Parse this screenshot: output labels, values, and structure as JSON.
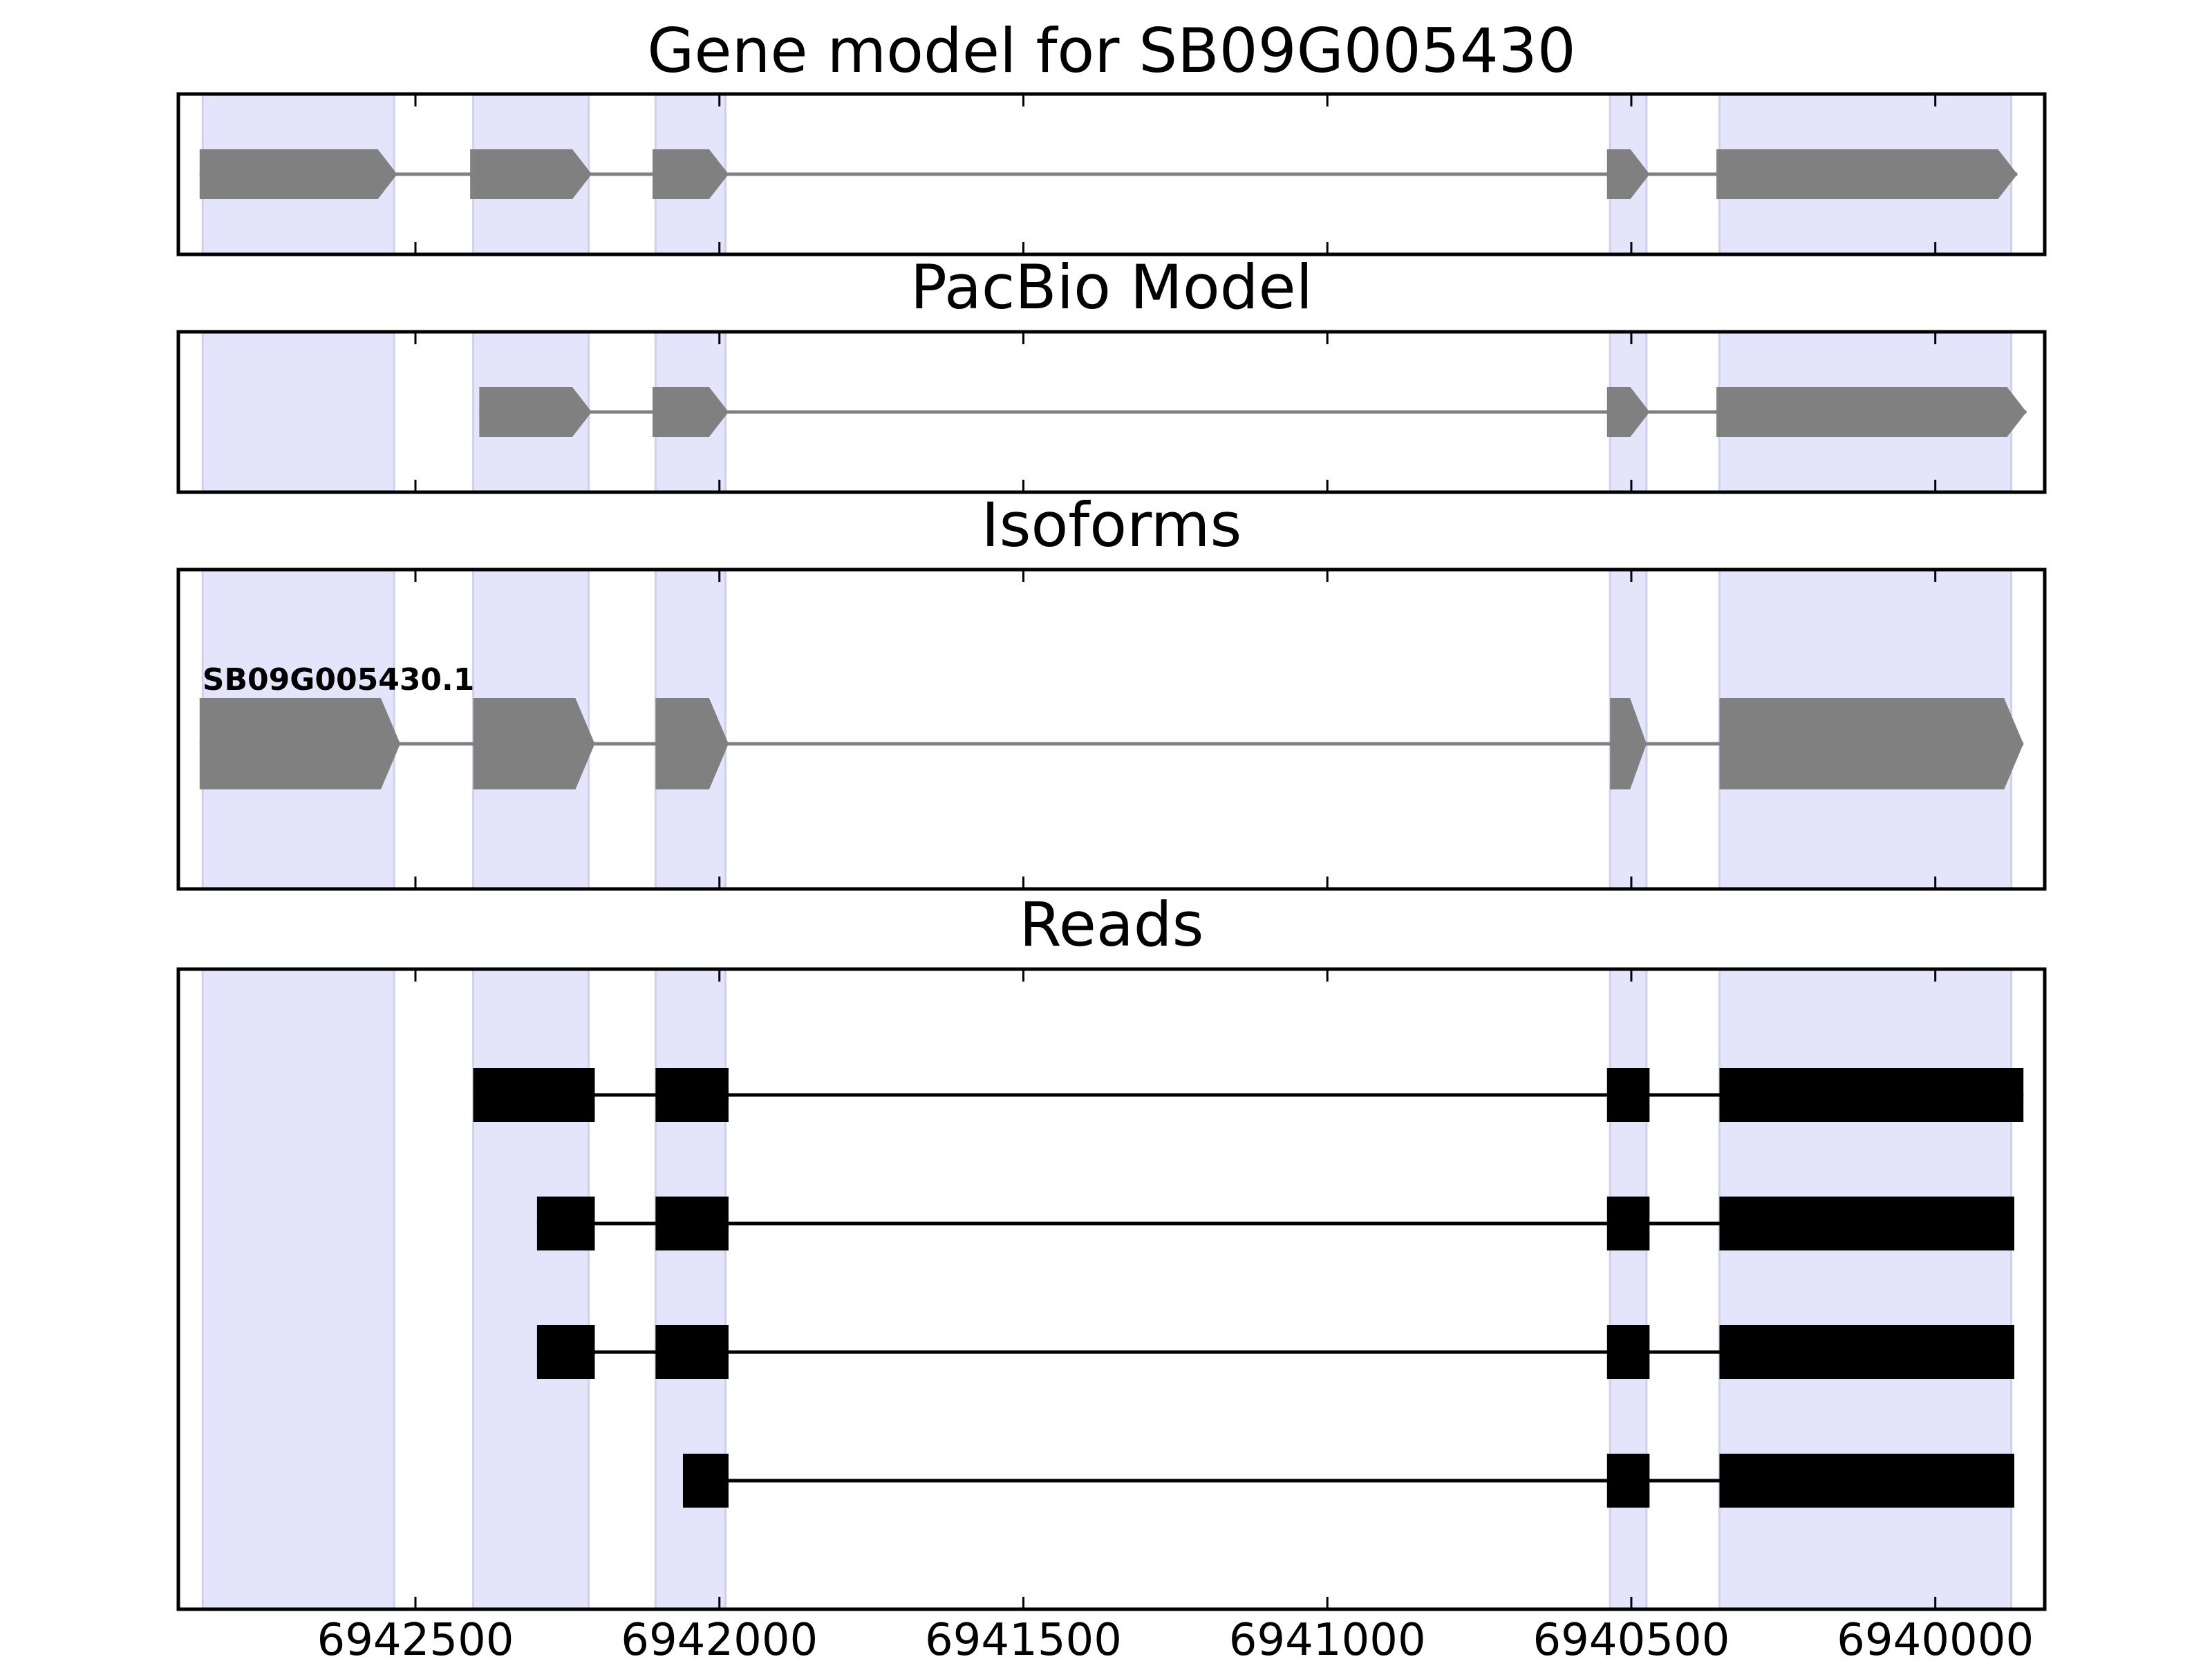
{
  "chart_data": {
    "type": "gene-track",
    "x_axis": {
      "reversed": true,
      "xlim": [
        6942890,
        6939820
      ],
      "ticks": [
        6942500,
        6942000,
        6941500,
        6941000,
        6940500,
        6940000
      ],
      "tick_labels": [
        "6942500",
        "6942000",
        "6941500",
        "6941000",
        "6940500",
        "6940000"
      ]
    },
    "highlight_color": "#e4e4fb",
    "highlight_regions": [
      [
        6942850,
        6942535
      ],
      [
        6942405,
        6942215
      ],
      [
        6942105,
        6941990
      ],
      [
        6940535,
        6940475
      ],
      [
        6940355,
        6939875
      ]
    ],
    "panels": [
      {
        "title": "Gene model for SB09G005430",
        "kind": "model",
        "color": "#808080",
        "intron_color": "#808080",
        "tracks": [
          {
            "label": "",
            "exons": [
              [
                6942855,
                6942530
              ],
              [
                6942410,
                6942210
              ],
              [
                6942110,
                6941985
              ],
              [
                6940540,
                6940470
              ],
              [
                6940360,
                6939865
              ]
            ]
          }
        ]
      },
      {
        "title": "PacBio Model",
        "kind": "model",
        "color": "#808080",
        "intron_color": "#808080",
        "tracks": [
          {
            "label": "",
            "exons": [
              [
                6942395,
                6942210
              ],
              [
                6942110,
                6941985
              ],
              [
                6940540,
                6940470
              ],
              [
                6940360,
                6939850
              ]
            ]
          }
        ]
      },
      {
        "title": "Isoforms",
        "kind": "model",
        "color": "#808080",
        "intron_color": "#808080",
        "tracks": [
          {
            "label": "SB09G005430.1",
            "exons": [
              [
                6942855,
                6942525
              ],
              [
                6942405,
                6942205
              ],
              [
                6942105,
                6941985
              ],
              [
                6940535,
                6940475
              ],
              [
                6940355,
                6939855
              ]
            ]
          }
        ]
      },
      {
        "title": "Reads",
        "kind": "reads",
        "color": "#000000",
        "intron_color": "#000000",
        "tracks": [
          {
            "label": "",
            "exons": [
              [
                6942405,
                6942205
              ],
              [
                6942105,
                6941985
              ],
              [
                6940540,
                6940470
              ],
              [
                6940355,
                6939855
              ]
            ]
          },
          {
            "label": "",
            "exons": [
              [
                6942300,
                6942205
              ],
              [
                6942105,
                6941985
              ],
              [
                6940540,
                6940470
              ],
              [
                6940355,
                6939870
              ]
            ]
          },
          {
            "label": "",
            "exons": [
              [
                6942300,
                6942205
              ],
              [
                6942105,
                6941985
              ],
              [
                6940540,
                6940470
              ],
              [
                6940355,
                6939870
              ]
            ]
          },
          {
            "label": "",
            "exons": [
              [
                6942060,
                6941985
              ],
              [
                6940540,
                6940470
              ],
              [
                6940355,
                6939870
              ]
            ]
          }
        ]
      }
    ]
  }
}
